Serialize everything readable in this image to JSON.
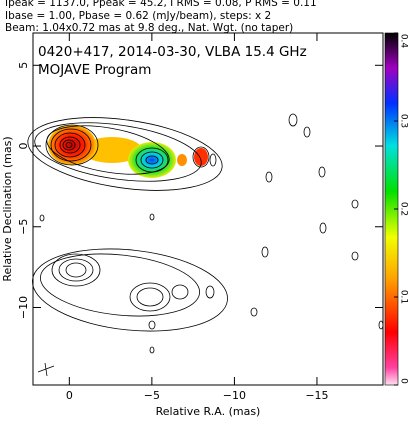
{
  "header": {
    "lines": [
      "Ipeak = 1137.0, Ppeak = 45.2, I RMS = 0.08, P RMS = 0.11",
      "Ibase = 1.00, Pbase = 0.62 (mJy/beam), steps: x 2",
      "Beam: 1.04x0.72 mas at 9.8 deg., Nat. Wgt. (no taper)"
    ]
  },
  "chart_data": {
    "type": "contour",
    "annotations": [
      "0420+417, 2014-03-30, VLBA 15.4 GHz",
      "MOJAVE Program"
    ],
    "x_label": "Relative R.A. (mas)",
    "y_label": "Relative Declination (mas)",
    "xlim": [
      2.2,
      -19
    ],
    "xticks": [
      0,
      {
        "value": -5,
        "label": "−5"
      },
      {
        "value": -10,
        "label": "−10"
      },
      {
        "value": -15,
        "label": "−15"
      }
    ],
    "ylim": [
      -14.8,
      7
    ],
    "yticks": [
      5,
      0,
      {
        "value": -5,
        "label": "−5"
      },
      {
        "value": -10,
        "label": "−10"
      }
    ],
    "colorbar": {
      "lim": [
        0,
        0.4
      ],
      "ticks": [
        0,
        0.1,
        0.2,
        0.3,
        0.4
      ]
    }
  }
}
